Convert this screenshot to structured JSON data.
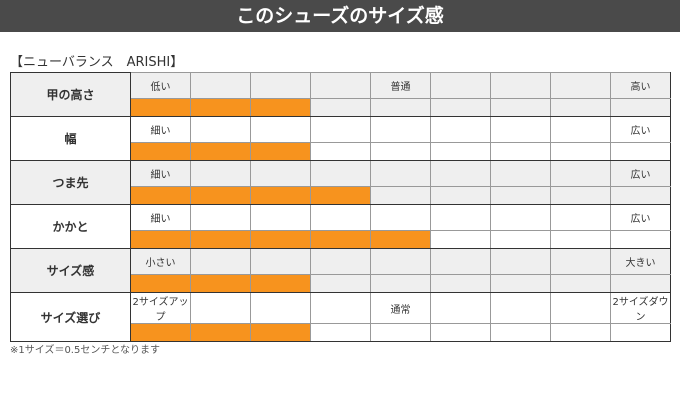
{
  "header": {
    "title": "このシューズのサイズ感"
  },
  "product": {
    "title": "【ニューバランス　ARISHI】"
  },
  "scale_steps": 9,
  "accent_color": "#f7931e",
  "rows": [
    {
      "label": "甲の高さ",
      "left": "低い",
      "middle": "普通",
      "right": "高い",
      "level": 3
    },
    {
      "label": "幅",
      "left": "細い",
      "middle": "",
      "right": "広い",
      "level": 3
    },
    {
      "label": "つま先",
      "left": "細い",
      "middle": "",
      "right": "広い",
      "level": 4
    },
    {
      "label": "かかと",
      "left": "細い",
      "middle": "",
      "right": "広い",
      "level": 5
    },
    {
      "label": "サイズ感",
      "left": "小さい",
      "middle": "",
      "right": "大きい",
      "level": 3
    },
    {
      "label": "サイズ選び",
      "left": "2サイズアップ",
      "middle": "通常",
      "right": "2サイズダウン",
      "level": 3
    }
  ],
  "note": "※1サイズ＝0.5センチとなります"
}
